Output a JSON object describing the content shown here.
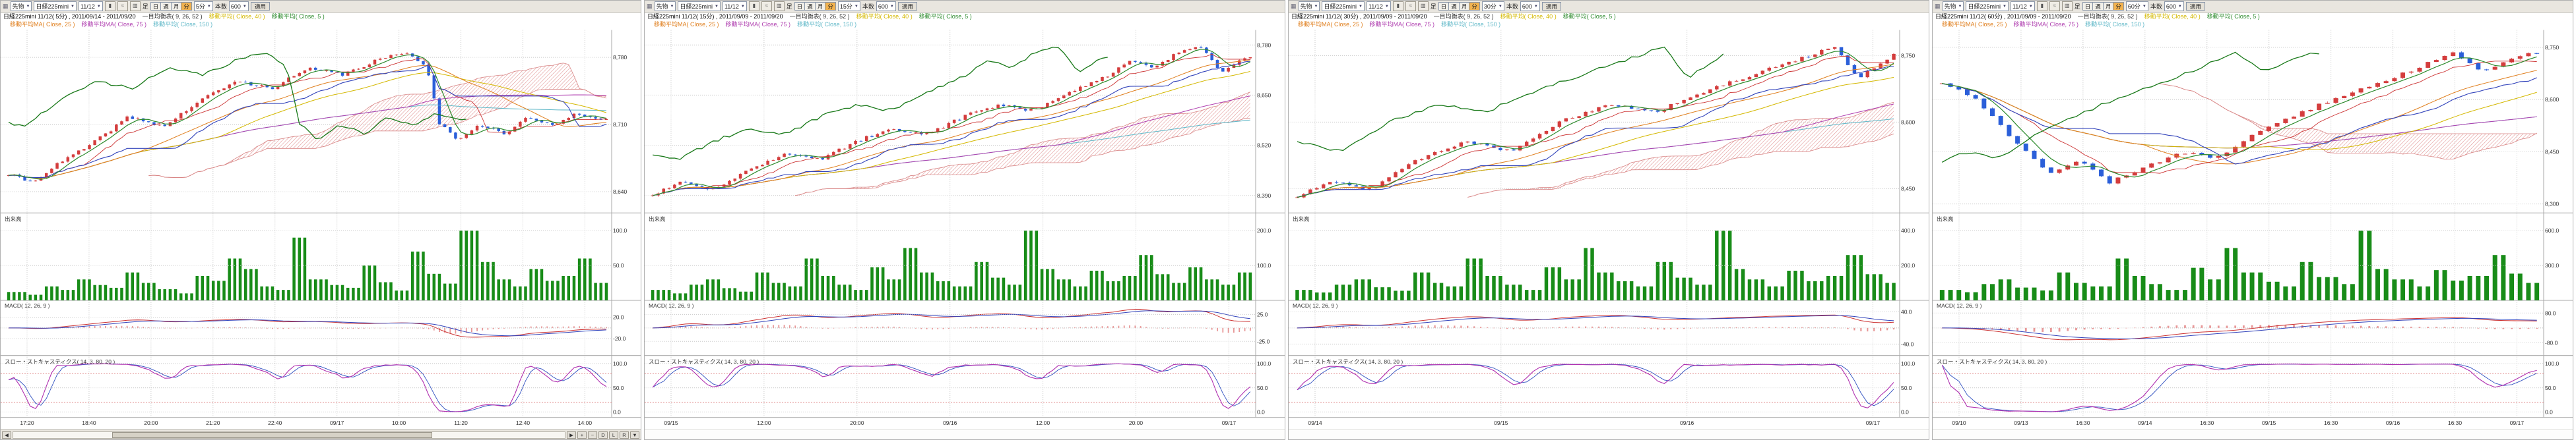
{
  "colors": {
    "accent": "#f2b24e",
    "up": "#d43d3d",
    "down": "#2b5fd9",
    "volume": "#188c18",
    "cloud": "#e09090",
    "grid": "#c9c9c9",
    "tenkan": "#cc3333",
    "kijun": "#3344bb",
    "chikou": "#1a7a1a",
    "ma5": "#2e8b2e",
    "ma25": "#e08020",
    "ma40": "#d4b800",
    "ma75": "#b040b0",
    "ma150": "#60b8c8",
    "macd": "#cc3333",
    "macd_signal": "#3344bb",
    "macd_hist": "#e89898",
    "stoch_k": "#b030b0",
    "stoch_d": "#3050c0",
    "axis_text": "#333333",
    "toolbar_bg": "#e9e6df"
  },
  "panels": [
    {
      "toolbar": {
        "category": "先物",
        "instrument": "日経225mini",
        "contract": "11/12",
        "ashi": "足",
        "periods": [
          "日",
          "週",
          "月",
          "分"
        ],
        "active_period": "分",
        "interval": "5分",
        "bars_label": "本数",
        "bars": "600",
        "apply": "適用"
      },
      "legend": {
        "title": "日経225mini 11/12( 5分) , 2011/09/14 - 2011/09/20",
        "row1": [
          {
            "label": "一目均衡表( 9, 26, 52 )",
            "color": "#333333"
          },
          {
            "label": "移動平均( Close, 40 )",
            "color": "#d4b800"
          },
          {
            "label": "移動平均( Close, 5 )",
            "color": "#2e8b2e"
          }
        ],
        "row2": [
          {
            "label": "移動平均MA( Close, 25 )",
            "color": "#e08020"
          },
          {
            "label": "移動平均MA( Close, 75 )",
            "color": "#b040b0"
          },
          {
            "label": "移動平均( Close, 150 )",
            "color": "#60b8c8"
          }
        ]
      },
      "sections": {
        "volume_label": "出来高",
        "macd_label": "MACD( 12, 26, 9 )",
        "stoch_label": "スロー・ストキャスティクス( 14, 3, 80, 20 )"
      },
      "bottom_bar": {
        "scroll_left": "◀",
        "scroll_right": "▶",
        "tools": [
          "+",
          "−",
          "D",
          "L",
          "R",
          "▼"
        ]
      }
    },
    {
      "toolbar": {
        "category": "先物",
        "instrument": "日経225mini",
        "contract": "11/12",
        "ashi": "足",
        "periods": [
          "日",
          "週",
          "月",
          "分"
        ],
        "active_period": "分",
        "interval": "15分",
        "bars_label": "本数",
        "bars": "600",
        "apply": "適用"
      },
      "legend": {
        "title": "日経225mini 11/12( 15分) , 2011/09/09 - 2011/09/20",
        "row1": [
          {
            "label": "一目均衡表( 9, 26, 52 )",
            "color": "#333333"
          },
          {
            "label": "移動平均( Close, 40 )",
            "color": "#d4b800"
          },
          {
            "label": "移動平均( Close, 5 )",
            "color": "#2e8b2e"
          }
        ],
        "row2": [
          {
            "label": "移動平均MA( Close, 25 )",
            "color": "#e08020"
          },
          {
            "label": "移動平均MA( Close, 75 )",
            "color": "#b040b0"
          },
          {
            "label": "移動平均( Close, 150 )",
            "color": "#60b8c8"
          }
        ]
      },
      "sections": {
        "volume_label": "出来高",
        "macd_label": "MACD( 12, 26, 9 )",
        "stoch_label": "スロー・ストキャスティクス( 14, 3, 80, 20 )"
      }
    },
    {
      "toolbar": {
        "category": "先物",
        "instrument": "日経225mini",
        "contract": "11/12",
        "ashi": "足",
        "periods": [
          "日",
          "週",
          "月",
          "分"
        ],
        "active_period": "分",
        "interval": "30分",
        "bars_label": "本数",
        "bars": "600",
        "apply": "適用"
      },
      "legend": {
        "title": "日経225mini 11/12( 30分) , 2011/09/09 - 2011/09/20",
        "row1": [
          {
            "label": "一目均衡表( 9, 26, 52 )",
            "color": "#333333"
          },
          {
            "label": "移動平均( Close, 40 )",
            "color": "#d4b800"
          },
          {
            "label": "移動平均( Close, 5 )",
            "color": "#2e8b2e"
          }
        ],
        "row2": [
          {
            "label": "移動平均MA( Close, 25 )",
            "color": "#e08020"
          },
          {
            "label": "移動平均MA( Close, 75 )",
            "color": "#b040b0"
          },
          {
            "label": "移動平均( Close, 150 )",
            "color": "#60b8c8"
          }
        ]
      },
      "sections": {
        "volume_label": "出来高",
        "macd_label": "MACD( 12, 26, 9 )",
        "stoch_label": "スロー・ストキャスティクス( 14, 3, 80, 20 )"
      }
    },
    {
      "toolbar": {
        "category": "先物",
        "instrument": "日経225mini",
        "contract": "11/12",
        "ashi": "足",
        "periods": [
          "日",
          "週",
          "月",
          "分"
        ],
        "active_period": "分",
        "interval": "60分",
        "bars_label": "本数",
        "bars": "600",
        "apply": "適用"
      },
      "legend": {
        "title": "日経225mini 11/12( 60分) , 2011/09/09 - 2011/09/20",
        "row1": [
          {
            "label": "一目均衡表( 9, 26, 52 )",
            "color": "#333333"
          },
          {
            "label": "移動平均( Close, 40 )",
            "color": "#d4b800"
          },
          {
            "label": "移動平均( Close, 5 )",
            "color": "#2e8b2e"
          }
        ],
        "row2": [
          {
            "label": "移動平均MA( Close, 25 )",
            "color": "#e08020"
          },
          {
            "label": "移動平均MA( Close, 75 )",
            "color": "#b040b0"
          },
          {
            "label": "移動平均( Close, 150 )",
            "color": "#60b8c8"
          }
        ]
      },
      "sections": {
        "volume_label": "出来高",
        "macd_label": "MACD( 12, 26, 9 )",
        "stoch_label": "スロー・ストキャスティクス( 14, 3, 80, 20 )"
      }
    }
  ],
  "chart_data": [
    {
      "type": "candlestick",
      "instrument": "日経225mini",
      "contract": "11/12",
      "interval": "5分",
      "date_range": "2011/09/14 - 2011/09/20",
      "indicators": [
        "一目均衡表( 9, 26, 52 )",
        "移動平均( Close, 5 )",
        "移動平均( Close, 25 )",
        "移動平均( Close, 40 )",
        "移動平均( Close, 75 )",
        "移動平均( Close, 150 )",
        "出来高",
        "MACD( 12, 26, 9 )",
        "スロー・ストキャスティクス( 14, 3, 80, 20 )"
      ],
      "n_candles": 112,
      "close_anchors": [
        [
          0.0,
          8658
        ],
        [
          0.04,
          8650
        ],
        [
          0.08,
          8668
        ],
        [
          0.14,
          8690
        ],
        [
          0.2,
          8718
        ],
        [
          0.26,
          8708
        ],
        [
          0.32,
          8735
        ],
        [
          0.38,
          8755
        ],
        [
          0.44,
          8748
        ],
        [
          0.5,
          8768
        ],
        [
          0.56,
          8762
        ],
        [
          0.62,
          8778
        ],
        [
          0.67,
          8785
        ],
        [
          0.7,
          8770
        ],
        [
          0.72,
          8712
        ],
        [
          0.75,
          8695
        ],
        [
          0.79,
          8710
        ],
        [
          0.83,
          8700
        ],
        [
          0.87,
          8718
        ],
        [
          0.91,
          8708
        ],
        [
          0.95,
          8722
        ],
        [
          1.0,
          8715
        ]
      ],
      "price_axis": {
        "min": 8620,
        "max": 8805,
        "ticks": [
          {
            "label": "8,780",
            "value": 8780
          },
          {
            "label": "8,710",
            "value": 8710
          },
          {
            "label": "8,640",
            "value": 8640
          }
        ]
      },
      "volume": [
        12,
        8,
        20,
        15,
        30,
        22,
        18,
        40,
        25,
        16,
        10,
        35,
        28,
        60,
        45,
        20,
        15,
        90,
        30,
        22,
        18,
        50,
        26,
        14,
        70,
        38,
        24,
        100,
        55,
        30,
        20,
        45,
        28,
        35,
        60,
        25
      ],
      "volume_axis": {
        "max": 110,
        "ticks": [
          {
            "label": "100.0",
            "value": 100
          },
          {
            "label": "50.0",
            "value": 50
          }
        ]
      },
      "macd_axis": {
        "min": -45,
        "max": 45,
        "ticks": [
          {
            "label": "20.0",
            "value": 20
          },
          {
            "label": "-20.0",
            "value": -20
          }
        ]
      },
      "stoch_axis": {
        "ticks": [
          {
            "label": "100.0",
            "value": 100
          },
          {
            "label": "50.0",
            "value": 50
          },
          {
            "label": "0.0",
            "value": 0
          }
        ]
      },
      "x_labels": [
        "17:20",
        "18:40",
        "20:00",
        "21:20",
        "22:40",
        "09/17",
        "10:00",
        "11:20",
        "12:40",
        "14:00"
      ]
    },
    {
      "type": "candlestick",
      "instrument": "日経225mini",
      "contract": "11/12",
      "interval": "15分",
      "date_range": "2011/09/09 - 2011/09/20",
      "indicators": [
        "一目均衡表( 9, 26, 52 )",
        "移動平均( Close, 5 )",
        "移動平均( Close, 25 )",
        "移動平均( Close, 40 )",
        "移動平均( Close, 75 )",
        "移動平均( Close, 150 )",
        "出来高",
        "MACD( 12, 26, 9 )",
        "スロー・ストキャスティクス( 14, 3, 80, 20 )"
      ],
      "n_candles": 110,
      "close_anchors": [
        [
          0.0,
          8392
        ],
        [
          0.05,
          8425
        ],
        [
          0.1,
          8405
        ],
        [
          0.16,
          8455
        ],
        [
          0.22,
          8498
        ],
        [
          0.28,
          8482
        ],
        [
          0.34,
          8530
        ],
        [
          0.4,
          8565
        ],
        [
          0.46,
          8548
        ],
        [
          0.52,
          8595
        ],
        [
          0.58,
          8625
        ],
        [
          0.64,
          8610
        ],
        [
          0.7,
          8660
        ],
        [
          0.76,
          8700
        ],
        [
          0.8,
          8738
        ],
        [
          0.84,
          8722
        ],
        [
          0.88,
          8762
        ],
        [
          0.92,
          8775
        ],
        [
          0.95,
          8705
        ],
        [
          0.98,
          8735
        ],
        [
          1.0,
          8748
        ]
      ],
      "price_axis": {
        "min": 8350,
        "max": 8810,
        "ticks": [
          {
            "label": "8,780",
            "value": 8780
          },
          {
            "label": "8,650",
            "value": 8650
          },
          {
            "label": "8,520",
            "value": 8520
          },
          {
            "label": "8,390",
            "value": 8390
          }
        ]
      },
      "volume": [
        30,
        20,
        45,
        60,
        35,
        25,
        80,
        50,
        40,
        120,
        70,
        45,
        30,
        95,
        60,
        150,
        80,
        55,
        40,
        110,
        65,
        45,
        200,
        90,
        60,
        40,
        85,
        55,
        70,
        130,
        75,
        50,
        95,
        60,
        45,
        80
      ],
      "volume_axis": {
        "max": 220,
        "ticks": [
          {
            "label": "200.0",
            "value": 200
          },
          {
            "label": "100.0",
            "value": 100
          }
        ]
      },
      "macd_axis": {
        "min": -45,
        "max": 45,
        "ticks": [
          {
            "label": "25.0",
            "value": 25
          },
          {
            "label": "-25.0",
            "value": -25
          }
        ]
      },
      "stoch_axis": {
        "ticks": [
          {
            "label": "100.0",
            "value": 100
          },
          {
            "label": "50.0",
            "value": 50
          },
          {
            "label": "0.0",
            "value": 0
          }
        ]
      },
      "x_labels": [
        "09/15",
        "12:00",
        "20:00",
        "09/16",
        "12:00",
        "20:00",
        "09/17"
      ]
    },
    {
      "type": "candlestick",
      "instrument": "日経225mini",
      "contract": "11/12",
      "interval": "30分",
      "date_range": "2011/09/09 - 2011/09/20",
      "indicators": [
        "一目均衡表( 9, 26, 52 )",
        "移動平均( Close, 5 )",
        "移動平均( Close, 25 )",
        "移動平均( Close, 40 )",
        "移動平均( Close, 75 )",
        "移動平均( Close, 150 )",
        "出来高",
        "MACD( 12, 26, 9 )",
        "スロー・ストキャスティクス( 14, 3, 80, 20 )"
      ],
      "n_candles": 92,
      "close_anchors": [
        [
          0.0,
          8432
        ],
        [
          0.06,
          8468
        ],
        [
          0.12,
          8448
        ],
        [
          0.2,
          8515
        ],
        [
          0.28,
          8555
        ],
        [
          0.36,
          8535
        ],
        [
          0.44,
          8600
        ],
        [
          0.52,
          8640
        ],
        [
          0.6,
          8622
        ],
        [
          0.68,
          8668
        ],
        [
          0.76,
          8705
        ],
        [
          0.84,
          8742
        ],
        [
          0.9,
          8768
        ],
        [
          0.94,
          8700
        ],
        [
          1.0,
          8752
        ]
      ],
      "price_axis": {
        "min": 8400,
        "max": 8800,
        "ticks": [
          {
            "label": "8,750",
            "value": 8750
          },
          {
            "label": "8,600",
            "value": 8600
          },
          {
            "label": "8,450",
            "value": 8450
          }
        ]
      },
      "volume": [
        60,
        45,
        90,
        120,
        75,
        55,
        160,
        100,
        80,
        240,
        140,
        90,
        60,
        190,
        120,
        300,
        160,
        110,
        80,
        220,
        130,
        90,
        400,
        180,
        120,
        80,
        170,
        110,
        140,
        260,
        150,
        100
      ],
      "volume_axis": {
        "max": 440,
        "ticks": [
          {
            "label": "400.0",
            "value": 400
          },
          {
            "label": "200.0",
            "value": 200
          }
        ]
      },
      "macd_axis": {
        "min": -60,
        "max": 60,
        "ticks": [
          {
            "label": "40.0",
            "value": 40
          },
          {
            "label": "-40.0",
            "value": -40
          }
        ]
      },
      "stoch_axis": {
        "ticks": [
          {
            "label": "100.0",
            "value": 100
          },
          {
            "label": "50.0",
            "value": 50
          },
          {
            "label": "0.0",
            "value": 0
          }
        ]
      },
      "x_labels": [
        "09/14",
        "09/15",
        "09/16",
        "09/17"
      ]
    },
    {
      "type": "candlestick",
      "instrument": "日経225mini",
      "contract": "11/12",
      "interval": "60分",
      "date_range": "2011/09/09 - 2011/09/20",
      "indicators": [
        "一目均衡表( 9, 26, 52 )",
        "移動平均( Close, 5 )",
        "移動平均( Close, 25 )",
        "移動平均( Close, 40 )",
        "移動平均( Close, 75 )",
        "移動平均( Close, 150 )",
        "出来高",
        "MACD( 12, 26, 9 )",
        "スロー・ストキャスティクス( 14, 3, 80, 20 )"
      ],
      "n_candles": 72,
      "close_anchors": [
        [
          0.0,
          8648
        ],
        [
          0.06,
          8598
        ],
        [
          0.12,
          8482
        ],
        [
          0.18,
          8385
        ],
        [
          0.23,
          8428
        ],
        [
          0.28,
          8362
        ],
        [
          0.34,
          8402
        ],
        [
          0.4,
          8452
        ],
        [
          0.46,
          8428
        ],
        [
          0.52,
          8498
        ],
        [
          0.58,
          8545
        ],
        [
          0.64,
          8588
        ],
        [
          0.72,
          8638
        ],
        [
          0.8,
          8692
        ],
        [
          0.86,
          8738
        ],
        [
          0.91,
          8678
        ],
        [
          0.96,
          8722
        ],
        [
          1.0,
          8735
        ]
      ],
      "price_axis": {
        "min": 8280,
        "max": 8790,
        "ticks": [
          {
            "label": "8,750",
            "value": 8750
          },
          {
            "label": "8,600",
            "value": 8600
          },
          {
            "label": "8,450",
            "value": 8450
          },
          {
            "label": "8,300",
            "value": 8300
          }
        ]
      },
      "volume": [
        90,
        70,
        140,
        180,
        110,
        85,
        240,
        150,
        120,
        360,
        210,
        140,
        90,
        280,
        180,
        450,
        240,
        160,
        120,
        330,
        200,
        140,
        600,
        270,
        180,
        120,
        260,
        170,
        210,
        390,
        230,
        150
      ],
      "volume_axis": {
        "max": 660,
        "ticks": [
          {
            "label": "600.0",
            "value": 600
          },
          {
            "label": "300.0",
            "value": 300
          }
        ]
      },
      "macd_axis": {
        "min": -130,
        "max": 130,
        "ticks": [
          {
            "label": "80.0",
            "value": 80
          },
          {
            "label": "-80.0",
            "value": -80
          }
        ]
      },
      "stoch_axis": {
        "ticks": [
          {
            "label": "100.0",
            "value": 100
          },
          {
            "label": "50.0",
            "value": 50
          },
          {
            "label": "0.0",
            "value": 0
          }
        ]
      },
      "x_labels": [
        "09/10",
        "09/13",
        "16:30",
        "09/14",
        "16:30",
        "09/15",
        "16:30",
        "09/16",
        "16:30",
        "09/17"
      ]
    }
  ]
}
